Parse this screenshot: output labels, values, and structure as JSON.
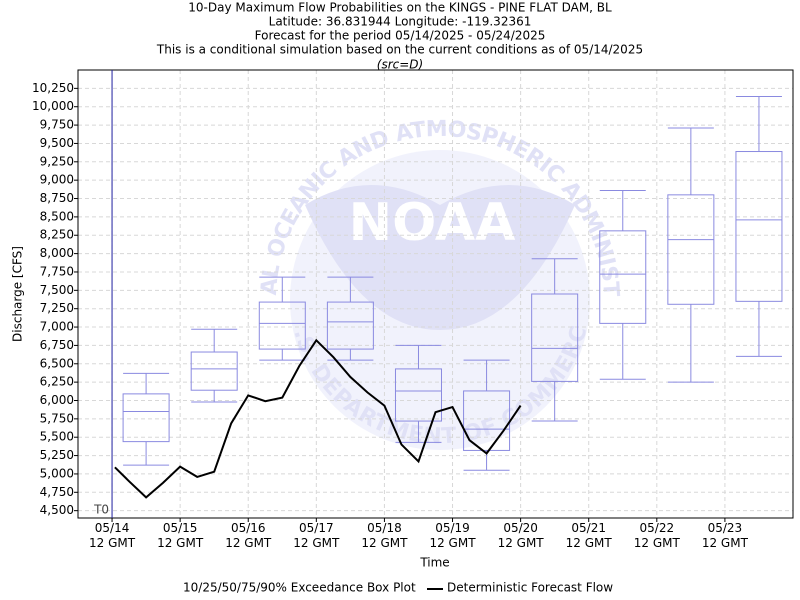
{
  "chart_data": {
    "type": "box",
    "title": [
      "10-Day Maximum Flow Probabilities on the KINGS - PINE FLAT DAM, BL",
      "Latitude: 36.831944 Longitude: -119.32361",
      "Forecast for the period 05/14/2025 - 05/24/2025",
      "This is a conditional simulation based on the current conditions as of 05/14/2025"
    ],
    "subtitle": "(src=D)",
    "x_label": "Time",
    "y_label": "Discharge [CFS]",
    "watermark": {
      "center": "NOAA",
      "top": "NATIONAL OCEANIC AND ATMOSPHERIC ADMINISTRATION",
      "bottom": "U.S. DEPARTMENT OF COMMERCE"
    },
    "annotations": [
      {
        "text": "T0",
        "x": "2025-05-14T12:00Z"
      }
    ],
    "xlim": [
      "2025-05-14T00:00Z",
      "2025-05-24T12:00Z"
    ],
    "xticks": [
      {
        "value": "2025-05-14T12:00Z",
        "label": "05/14\n12 GMT"
      },
      {
        "value": "2025-05-15T12:00Z",
        "label": "05/15\n12 GMT"
      },
      {
        "value": "2025-05-16T12:00Z",
        "label": "05/16\n12 GMT"
      },
      {
        "value": "2025-05-17T12:00Z",
        "label": "05/17\n12 GMT"
      },
      {
        "value": "2025-05-18T12:00Z",
        "label": "05/18\n12 GMT"
      },
      {
        "value": "2025-05-19T12:00Z",
        "label": "05/19\n12 GMT"
      },
      {
        "value": "2025-05-20T12:00Z",
        "label": "05/20\n12 GMT"
      },
      {
        "value": "2025-05-21T12:00Z",
        "label": "05/21\n12 GMT"
      },
      {
        "value": "2025-05-22T12:00Z",
        "label": "05/22\n12 GMT"
      },
      {
        "value": "2025-05-23T12:00Z",
        "label": "05/23\n12 GMT"
      }
    ],
    "ylim": [
      4400,
      10500
    ],
    "yticks": [
      {
        "value": 4500,
        "label": "4,500"
      },
      {
        "value": 4750,
        "label": "4,750"
      },
      {
        "value": 5000,
        "label": "5,000"
      },
      {
        "value": 5250,
        "label": "5,250"
      },
      {
        "value": 5500,
        "label": "5,500"
      },
      {
        "value": 5750,
        "label": "5,750"
      },
      {
        "value": 6000,
        "label": "6,000"
      },
      {
        "value": 6250,
        "label": "6,250"
      },
      {
        "value": 6500,
        "label": "6,500"
      },
      {
        "value": 6750,
        "label": "6,750"
      },
      {
        "value": 7000,
        "label": "7,000"
      },
      {
        "value": 7250,
        "label": "7,250"
      },
      {
        "value": 7500,
        "label": "7,500"
      },
      {
        "value": 7750,
        "label": "7,750"
      },
      {
        "value": 8000,
        "label": "8,000"
      },
      {
        "value": 8250,
        "label": "8,250"
      },
      {
        "value": 8500,
        "label": "8,500"
      },
      {
        "value": 8750,
        "label": "8,750"
      },
      {
        "value": 9000,
        "label": "9,000"
      },
      {
        "value": 9250,
        "label": "9,250"
      },
      {
        "value": 9500,
        "label": "9,500"
      },
      {
        "value": 9750,
        "label": "9,750"
      },
      {
        "value": 10000,
        "label": "10,000"
      },
      {
        "value": 10250,
        "label": "10,250"
      }
    ],
    "grid": true,
    "boxes": {
      "name": "10/25/50/75/90% Exceedance Box Plot",
      "color": "#8a8ae0",
      "x": [
        "2025-05-15T00:00Z",
        "2025-05-16T00:00Z",
        "2025-05-17T00:00Z",
        "2025-05-18T00:00Z",
        "2025-05-19T00:00Z",
        "2025-05-20T00:00Z",
        "2025-05-21T00:00Z",
        "2025-05-22T00:00Z",
        "2025-05-23T00:00Z",
        "2025-05-24T00:00Z"
      ],
      "p10": [
        5120,
        5980,
        6550,
        6550,
        5430,
        5050,
        5720,
        6290,
        6250,
        6600
      ],
      "p25": [
        5440,
        6140,
        6700,
        6700,
        5720,
        5320,
        6260,
        7050,
        7310,
        7350
      ],
      "p50": [
        5850,
        6430,
        7050,
        7070,
        6130,
        5610,
        6710,
        7720,
        8190,
        8460
      ],
      "p75": [
        6090,
        6660,
        7340,
        7340,
        6430,
        6130,
        7450,
        8310,
        8800,
        9390
      ],
      "p90": [
        6370,
        6970,
        7680,
        7680,
        6750,
        6550,
        7930,
        8860,
        9710,
        10140
      ]
    },
    "series": [
      {
        "name": "Deterministic Forecast Flow",
        "color": "#000000",
        "x": [
          "2025-05-14T13:00Z",
          "2025-05-14T18:00Z",
          "2025-05-15T00:00Z",
          "2025-05-15T06:00Z",
          "2025-05-15T12:00Z",
          "2025-05-15T18:00Z",
          "2025-05-16T00:00Z",
          "2025-05-16T06:00Z",
          "2025-05-16T12:00Z",
          "2025-05-16T18:00Z",
          "2025-05-17T00:00Z",
          "2025-05-17T06:00Z",
          "2025-05-17T12:00Z",
          "2025-05-17T18:00Z",
          "2025-05-18T00:00Z",
          "2025-05-18T06:00Z",
          "2025-05-18T12:00Z",
          "2025-05-18T18:00Z",
          "2025-05-19T00:00Z",
          "2025-05-19T06:00Z",
          "2025-05-19T12:00Z",
          "2025-05-19T18:00Z",
          "2025-05-20T00:00Z",
          "2025-05-20T06:00Z",
          "2025-05-20T12:00Z"
        ],
        "values": [
          5090,
          4900,
          4680,
          4880,
          5100,
          4960,
          5030,
          5690,
          6070,
          5990,
          6040,
          6470,
          6820,
          6590,
          6320,
          6110,
          5930,
          5400,
          5170,
          5840,
          5910,
          5460,
          5280,
          5590,
          5930
        ]
      }
    ]
  }
}
